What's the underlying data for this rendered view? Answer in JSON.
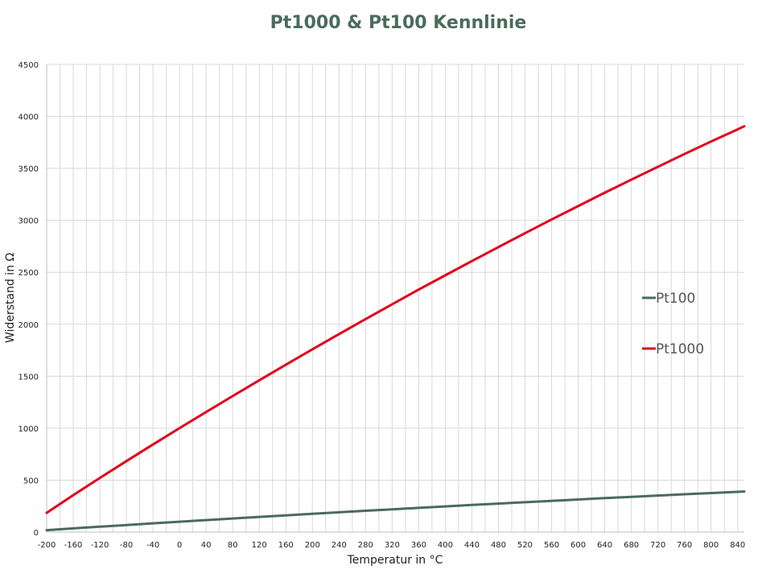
{
  "chart_data": {
    "type": "line",
    "title": "Pt1000 & Pt100 Kennlinie",
    "xlabel": "Temperatur in °C",
    "ylabel": "Widerstand in Ω",
    "xlim": [
      -200,
      850
    ],
    "ylim": [
      0,
      4500
    ],
    "xticks": [
      -200,
      -160,
      -120,
      -80,
      -40,
      0,
      40,
      80,
      120,
      160,
      200,
      240,
      280,
      320,
      360,
      400,
      440,
      480,
      520,
      560,
      600,
      640,
      680,
      720,
      760,
      800,
      840
    ],
    "yticks": [
      0,
      500,
      1000,
      1500,
      2000,
      2500,
      3000,
      3500,
      4000,
      4500
    ],
    "grid": true,
    "legend_position": "right",
    "x": [
      -200,
      -160,
      -120,
      -80,
      -40,
      0,
      40,
      80,
      120,
      160,
      200,
      240,
      280,
      320,
      360,
      400,
      440,
      480,
      520,
      560,
      600,
      640,
      680,
      720,
      760,
      800,
      840,
      850
    ],
    "series": [
      {
        "name": "Pt100",
        "color": "#4a6b5c",
        "values": [
          18.5,
          35.5,
          52.1,
          68.3,
          84.3,
          100.0,
          115.5,
          130.9,
          146.1,
          161.0,
          175.9,
          190.5,
          205.0,
          219.2,
          233.4,
          247.1,
          260.8,
          274.3,
          287.6,
          300.8,
          313.7,
          326.5,
          339.1,
          351.5,
          363.8,
          375.7,
          387.5,
          390.5
        ]
      },
      {
        "name": "Pt1000",
        "color": "#e3001b",
        "values": [
          185.2,
          355.4,
          521.1,
          683.3,
          842.7,
          1000.0,
          1155.4,
          1308.9,
          1460.6,
          1610.4,
          1758.6,
          1904.7,
          2049.5,
          2192.1,
          2333.5,
          2471.1,
          2607.7,
          2742.7,
          2875.6,
          3007.5,
          3137.1,
          3265.1,
          3390.8,
          3515.1,
          3637.6,
          3757.7,
          3875.0,
          3904.8
        ]
      }
    ]
  },
  "colors": {
    "title": "#4a6b5c",
    "grid": "#d9d9d9",
    "axis": "#bfbfbf"
  }
}
